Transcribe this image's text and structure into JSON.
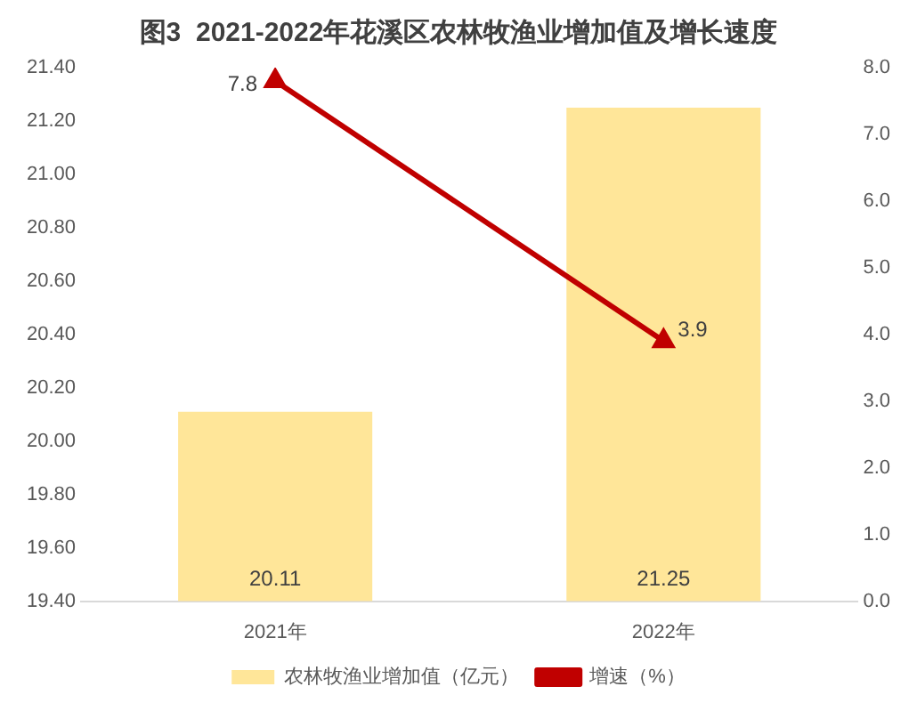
{
  "chart_data": {
    "type": "bar",
    "title": "图3  2021-2022年花溪区农林牧渔业增加值及增长速度",
    "categories": [
      "2021年",
      "2022年"
    ],
    "series": [
      {
        "name": "农林牧渔业增加值（亿元）",
        "color": "#ffe699",
        "values": [
          20.11,
          21.25
        ]
      },
      {
        "name": "增速（%）",
        "type": "line",
        "axis": "y2",
        "color": "#c00000",
        "values": [
          7.8,
          3.9
        ],
        "marker": "triangle"
      }
    ],
    "ylim": [
      19.4,
      21.4
    ],
    "yticks": [
      {
        "value": 19.4,
        "label": "19.40"
      },
      {
        "value": 19.6,
        "label": "19.60"
      },
      {
        "value": 19.8,
        "label": "19.80"
      },
      {
        "value": 20.0,
        "label": "20.00"
      },
      {
        "value": 20.2,
        "label": "20.20"
      },
      {
        "value": 20.4,
        "label": "20.40"
      },
      {
        "value": 20.6,
        "label": "20.60"
      },
      {
        "value": 20.8,
        "label": "20.80"
      },
      {
        "value": 21.0,
        "label": "21.00"
      },
      {
        "value": 21.2,
        "label": "21.20"
      },
      {
        "value": 21.4,
        "label": "21.40"
      }
    ],
    "y2lim": [
      0,
      8
    ],
    "y2ticks": [
      {
        "value": 0,
        "label": "0.0"
      },
      {
        "value": 1,
        "label": "1.0"
      },
      {
        "value": 2,
        "label": "2.0"
      },
      {
        "value": 3,
        "label": "3.0"
      },
      {
        "value": 4,
        "label": "4.0"
      },
      {
        "value": 5,
        "label": "5.0"
      },
      {
        "value": 6,
        "label": "6.0"
      },
      {
        "value": 7,
        "label": "7.0"
      },
      {
        "value": 8,
        "label": "8.0"
      }
    ],
    "grid": false,
    "legend": "bottom",
    "data_labels": true
  }
}
